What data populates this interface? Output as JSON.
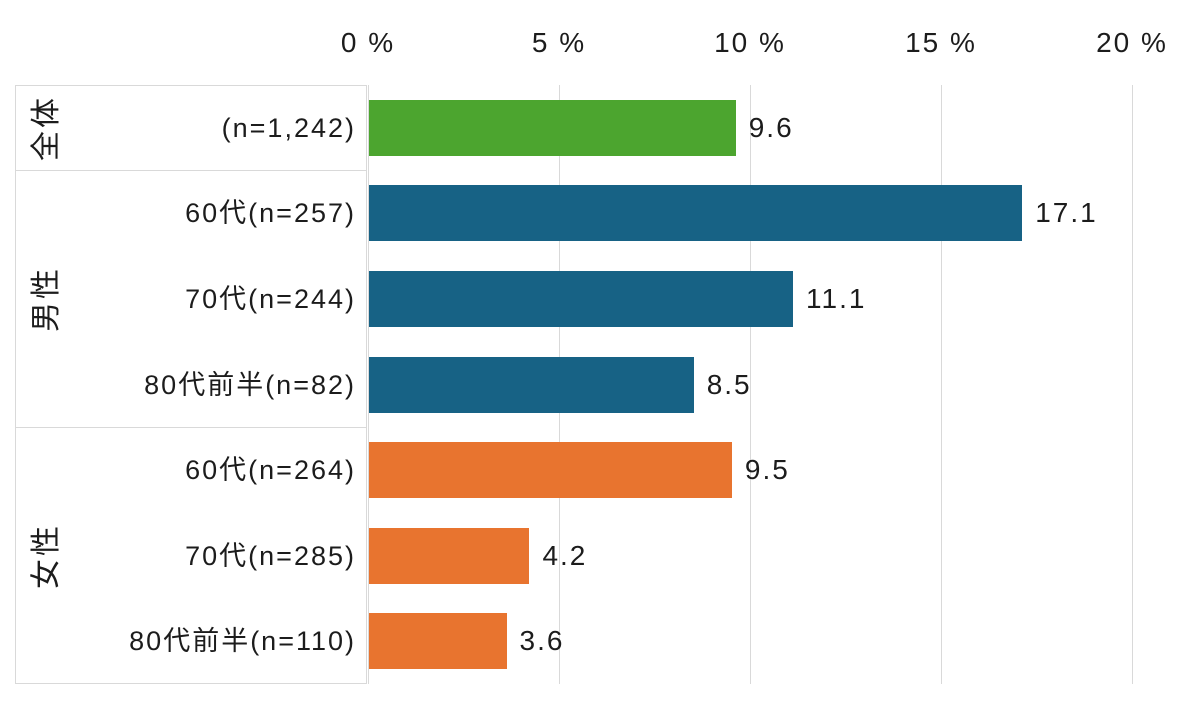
{
  "chart_data": {
    "type": "bar",
    "orientation": "horizontal",
    "unit": "%",
    "title": "",
    "xlabel": "",
    "ylabel": "",
    "xlim": [
      0,
      20
    ],
    "grid": true,
    "axis_position": "top",
    "x_axis": {
      "ticks": [
        {
          "label": "0 %",
          "value": 0
        },
        {
          "label": "5 %",
          "value": 5
        },
        {
          "label": "10 %",
          "value": 10
        },
        {
          "label": "15 %",
          "value": 15
        },
        {
          "label": "20 %",
          "value": 20
        }
      ]
    },
    "groups": [
      {
        "name": "全体",
        "color": "#4CA52F",
        "rows": [
          {
            "label": "(n=1,242)",
            "value": 9.6,
            "display": "9.6"
          }
        ]
      },
      {
        "name": "男性",
        "color": "#176285",
        "rows": [
          {
            "label": "60代(n=257)",
            "value": 17.1,
            "display": "17.1"
          },
          {
            "label": "70代(n=244)",
            "value": 11.1,
            "display": "11.1"
          },
          {
            "label": "80代前半(n=82)",
            "value": 8.5,
            "display": "8.5"
          }
        ]
      },
      {
        "name": "女性",
        "color": "#E8742F",
        "rows": [
          {
            "label": "60代(n=264)",
            "value": 9.5,
            "display": "9.5"
          },
          {
            "label": "70代(n=285)",
            "value": 4.2,
            "display": "4.2"
          },
          {
            "label": "80代前半(n=110)",
            "value": 3.6,
            "display": "3.6"
          }
        ]
      }
    ],
    "colors": {
      "overall_bar": "#4CA52F",
      "male_bar": "#176285",
      "female_bar": "#E8742F",
      "gridline": "#d9d9d9",
      "text": "#1c1c1c",
      "background": "#ffffff"
    },
    "legend": null
  }
}
